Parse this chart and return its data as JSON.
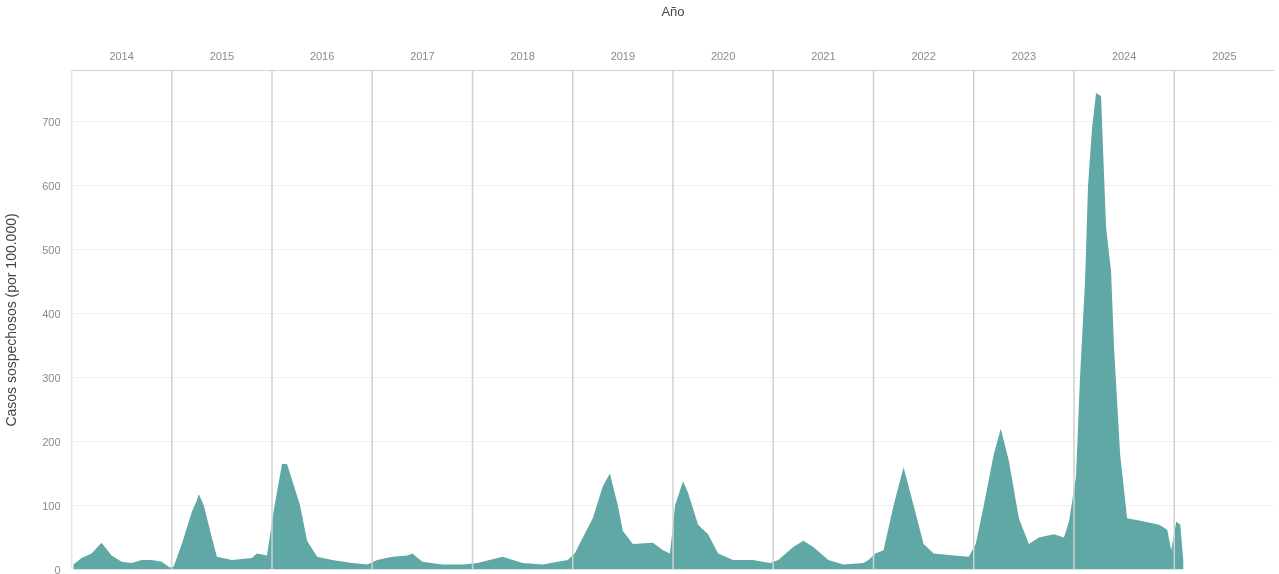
{
  "chart_data": {
    "type": "area",
    "xlabel": "Año",
    "ylabel": "Casos sospechosos (por 100.000)",
    "x": [
      2014.02,
      2014.1,
      2014.2,
      2014.3,
      2014.4,
      2014.5,
      2014.6,
      2014.7,
      2014.8,
      2014.9,
      2014.98,
      2014.99,
      2015.02,
      2015.1,
      2015.2,
      2015.25,
      2015.27,
      2015.32,
      2015.4,
      2015.45,
      2015.6,
      2015.8,
      2015.85,
      2015.95,
      2015.99,
      2016.02,
      2016.1,
      2016.15,
      2016.2,
      2016.28,
      2016.35,
      2016.45,
      2016.6,
      2016.8,
      2016.95,
      2016.99,
      2017.05,
      2017.2,
      2017.35,
      2017.4,
      2017.5,
      2017.7,
      2017.9,
      2017.99,
      2018.05,
      2018.25,
      2018.3,
      2018.5,
      2018.7,
      2018.85,
      2018.95,
      2018.99,
      2019.02,
      2019.1,
      2019.2,
      2019.3,
      2019.37,
      2019.45,
      2019.5,
      2019.6,
      2019.8,
      2019.9,
      2019.97,
      2019.99,
      2020.02,
      2020.1,
      2020.15,
      2020.25,
      2020.35,
      2020.45,
      2020.6,
      2020.8,
      2020.97,
      2020.99,
      2021.05,
      2021.2,
      2021.3,
      2021.4,
      2021.55,
      2021.7,
      2021.9,
      2021.95,
      2021.99,
      2022.02,
      2022.1,
      2022.2,
      2022.3,
      2022.4,
      2022.5,
      2022.6,
      2022.8,
      2022.95,
      2022.99,
      2023.02,
      2023.1,
      2023.2,
      2023.27,
      2023.35,
      2023.45,
      2023.55,
      2023.65,
      2023.8,
      2023.9,
      2023.95,
      2023.99,
      2024.02,
      2024.06,
      2024.11,
      2024.14,
      2024.18,
      2024.22,
      2024.27,
      2024.29,
      2024.32,
      2024.37,
      2024.4,
      2024.46,
      2024.53,
      2024.7,
      2024.85,
      2024.93,
      2024.97,
      2024.99,
      2025.02,
      2025.06,
      2025.09
    ],
    "values": [
      8,
      18,
      25,
      42,
      22,
      12,
      10,
      15,
      15,
      12,
      3,
      null,
      5,
      40,
      90,
      108,
      118,
      100,
      50,
      20,
      15,
      18,
      25,
      22,
      null,
      95,
      165,
      165,
      140,
      100,
      45,
      20,
      15,
      10,
      8,
      null,
      15,
      20,
      22,
      25,
      12,
      8,
      8,
      null,
      10,
      18,
      20,
      10,
      8,
      12,
      15,
      null,
      25,
      50,
      80,
      130,
      150,
      100,
      60,
      40,
      42,
      30,
      25,
      null,
      100,
      138,
      120,
      70,
      55,
      25,
      15,
      15,
      10,
      null,
      15,
      35,
      45,
      35,
      15,
      8,
      10,
      15,
      null,
      25,
      30,
      100,
      160,
      100,
      40,
      25,
      22,
      20,
      null,
      40,
      100,
      180,
      220,
      170,
      80,
      40,
      50,
      55,
      50,
      75,
      null,
      145,
      300,
      450,
      600,
      690,
      745,
      740,
      655,
      535,
      465,
      345,
      180,
      80,
      75,
      70,
      62,
      30,
      null,
      75,
      70,
      15
    ],
    "color": "#5fa8a5",
    "xlim": [
      2014,
      2026
    ],
    "xticks": [
      {
        "value": 2014.5,
        "label": "2014"
      },
      {
        "value": 2015.5,
        "label": "2015"
      },
      {
        "value": 2016.5,
        "label": "2016"
      },
      {
        "value": 2017.5,
        "label": "2017"
      },
      {
        "value": 2018.5,
        "label": "2018"
      },
      {
        "value": 2019.5,
        "label": "2019"
      },
      {
        "value": 2020.5,
        "label": "2020"
      },
      {
        "value": 2021.5,
        "label": "2021"
      },
      {
        "value": 2022.5,
        "label": "2022"
      },
      {
        "value": 2023.5,
        "label": "2023"
      },
      {
        "value": 2024.5,
        "label": "2024"
      },
      {
        "value": 2025.5,
        "label": "2025"
      }
    ],
    "ylim": [
      0,
      780
    ],
    "yticks": [
      0,
      100,
      200,
      300,
      400,
      500,
      600,
      700
    ],
    "ref_lines": [
      {
        "axis": "x",
        "value": 2014,
        "color": "#d0d0d0"
      },
      {
        "axis": "x",
        "value": 2015,
        "color": "#d0d0d0"
      },
      {
        "axis": "x",
        "value": 2016,
        "color": "#d0d0d0"
      },
      {
        "axis": "x",
        "value": 2017,
        "color": "#d0d0d0"
      },
      {
        "axis": "x",
        "value": 2018,
        "color": "#d0d0d0"
      },
      {
        "axis": "x",
        "value": 2019,
        "color": "#d0d0d0"
      },
      {
        "axis": "x",
        "value": 2020,
        "color": "#d0d0d0"
      },
      {
        "axis": "x",
        "value": 2021,
        "color": "#d0d0d0"
      },
      {
        "axis": "x",
        "value": 2022,
        "color": "#d0d0d0"
      },
      {
        "axis": "x",
        "value": 2023,
        "color": "#d0d0d0"
      },
      {
        "axis": "x",
        "value": 2024,
        "color": "#d0d0d0"
      },
      {
        "axis": "x",
        "value": 2025,
        "color": "#d0d0d0"
      }
    ],
    "grid": "y"
  }
}
